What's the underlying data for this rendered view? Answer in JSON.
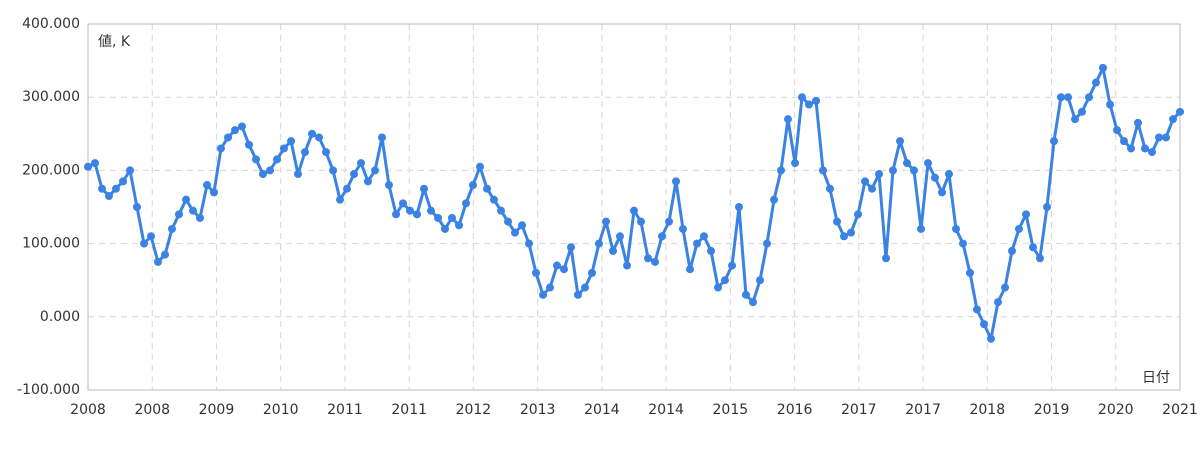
{
  "chart_data": {
    "type": "line",
    "y_label": "値, K",
    "x_label": "日付",
    "color": "#3a82e4",
    "grid": true,
    "xlim": [
      2008,
      2021
    ],
    "xticks": [
      {
        "value": 2008,
        "label": "2008"
      },
      {
        "value": 2008.765,
        "label": "2008"
      },
      {
        "value": 2009.529,
        "label": "2009"
      },
      {
        "value": 2010.294,
        "label": "2010"
      },
      {
        "value": 2011.059,
        "label": "2011"
      },
      {
        "value": 2011.824,
        "label": "2011"
      },
      {
        "value": 2012.588,
        "label": "2012"
      },
      {
        "value": 2013.353,
        "label": "2013"
      },
      {
        "value": 2014.118,
        "label": "2014"
      },
      {
        "value": 2014.882,
        "label": "2014"
      },
      {
        "value": 2015.647,
        "label": "2015"
      },
      {
        "value": 2016.412,
        "label": "2016"
      },
      {
        "value": 2017.176,
        "label": "2017"
      },
      {
        "value": 2017.941,
        "label": "2017"
      },
      {
        "value": 2018.706,
        "label": "2018"
      },
      {
        "value": 2019.471,
        "label": "2019"
      },
      {
        "value": 2020.235,
        "label": "2020"
      },
      {
        "value": 2021,
        "label": "2021"
      }
    ],
    "ylim": [
      -100,
      400
    ],
    "yticks": [
      {
        "value": -100,
        "label": "-100.000"
      },
      {
        "value": 0,
        "label": "0.000"
      },
      {
        "value": 100,
        "label": "100.000"
      },
      {
        "value": 200,
        "label": "200.000"
      },
      {
        "value": 300,
        "label": "300.000"
      },
      {
        "value": 400,
        "label": "400.000"
      }
    ],
    "x": [
      2008,
      2008.083,
      2008.167,
      2008.25,
      2008.333,
      2008.417,
      2008.5,
      2008.583,
      2008.667,
      2008.75,
      2008.833,
      2008.917,
      2009,
      2009.083,
      2009.167,
      2009.25,
      2009.333,
      2009.417,
      2009.5,
      2009.583,
      2009.667,
      2009.75,
      2009.833,
      2009.917,
      2010,
      2010.083,
      2010.167,
      2010.25,
      2010.333,
      2010.417,
      2010.5,
      2010.583,
      2010.667,
      2010.75,
      2010.833,
      2010.917,
      2011,
      2011.083,
      2011.167,
      2011.25,
      2011.333,
      2011.417,
      2011.5,
      2011.583,
      2011.667,
      2011.75,
      2011.833,
      2011.917,
      2012,
      2012.083,
      2012.167,
      2012.25,
      2012.333,
      2012.417,
      2012.5,
      2012.583,
      2012.667,
      2012.75,
      2012.833,
      2012.917,
      2013,
      2013.083,
      2013.167,
      2013.25,
      2013.333,
      2013.417,
      2013.5,
      2013.583,
      2013.667,
      2013.75,
      2013.833,
      2013.917,
      2014,
      2014.083,
      2014.167,
      2014.25,
      2014.333,
      2014.417,
      2014.5,
      2014.583,
      2014.667,
      2014.75,
      2014.833,
      2014.917,
      2015,
      2015.083,
      2015.167,
      2015.25,
      2015.333,
      2015.417,
      2015.5,
      2015.583,
      2015.667,
      2015.75,
      2015.833,
      2015.917,
      2016,
      2016.083,
      2016.167,
      2016.25,
      2016.333,
      2016.417,
      2016.5,
      2016.583,
      2016.667,
      2016.75,
      2016.833,
      2016.917,
      2017,
      2017.083,
      2017.167,
      2017.25,
      2017.333,
      2017.417,
      2017.5,
      2017.583,
      2017.667,
      2017.75,
      2017.833,
      2017.917,
      2018,
      2018.083,
      2018.167,
      2018.25,
      2018.333,
      2018.417,
      2018.5,
      2018.583,
      2018.667,
      2018.75,
      2018.833,
      2018.917,
      2019,
      2019.083,
      2019.167,
      2019.25,
      2019.333,
      2019.417,
      2019.5,
      2019.583,
      2019.667,
      2019.75,
      2019.833,
      2019.917,
      2020,
      2020.083,
      2020.167,
      2020.25,
      2020.333,
      2020.417,
      2020.5,
      2020.583,
      2020.667,
      2020.75,
      2020.833,
      2020.917,
      2021
    ],
    "values": [
      205,
      210,
      175,
      165,
      175,
      185,
      200,
      150,
      100,
      110,
      75,
      85,
      120,
      140,
      160,
      145,
      135,
      180,
      170,
      230,
      245,
      255,
      260,
      235,
      215,
      195,
      200,
      215,
      230,
      240,
      195,
      225,
      250,
      245,
      225,
      200,
      160,
      175,
      195,
      210,
      185,
      200,
      245,
      180,
      140,
      155,
      145,
      140,
      175,
      145,
      135,
      120,
      135,
      125,
      155,
      180,
      205,
      175,
      160,
      145,
      130,
      115,
      125,
      100,
      60,
      30,
      40,
      70,
      65,
      95,
      30,
      40,
      60,
      100,
      130,
      90,
      110,
      70,
      145,
      130,
      80,
      75,
      110,
      130,
      185,
      120,
      65,
      100,
      110,
      90,
      40,
      50,
      70,
      150,
      30,
      20,
      50,
      100,
      160,
      200,
      270,
      210,
      300,
      290,
      295,
      200,
      175,
      130,
      110,
      115,
      140,
      185,
      175,
      195,
      80,
      200,
      240,
      210,
      200,
      120,
      210,
      190,
      170,
      195,
      120,
      100,
      60,
      10,
      -10,
      -30,
      20,
      40,
      90,
      120,
      140,
      95,
      80,
      150,
      240,
      300,
      300,
      270,
      280,
      300,
      320,
      340,
      290,
      255,
      240,
      230,
      265,
      230,
      225,
      245,
      245,
      270,
      280
    ]
  }
}
